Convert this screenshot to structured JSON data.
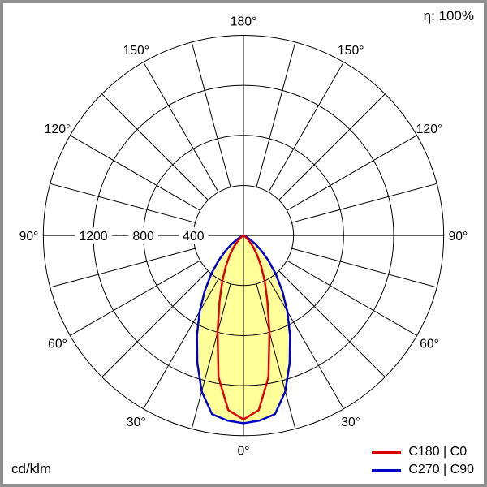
{
  "corner": {
    "efficiency": "η: 100%",
    "unit": "cd/klm"
  },
  "chart_data": {
    "type": "line",
    "polar": true,
    "description": "Polar luminous intensity distribution curve (photometric diagram), 0° at bottom (nadir)",
    "efficiency_percent": 100,
    "radial_axis": {
      "unit": "cd/klm",
      "ticks": [
        400,
        800,
        1200
      ],
      "max": 1600
    },
    "angular_axis": {
      "grid_step_deg": 15,
      "labels_deg": [
        0,
        30,
        60,
        90,
        120,
        150,
        180
      ],
      "zero_position": "bottom"
    },
    "fill": {
      "color": "#ffff99",
      "series": "C270 | C90"
    },
    "series": [
      {
        "name": "C180 | C0",
        "color": "#dd0000",
        "symmetric": true,
        "gamma_deg": [
          0,
          5,
          10,
          15,
          20,
          25,
          30,
          35,
          40,
          45,
          50,
          55,
          60,
          65,
          70,
          75,
          80,
          85,
          90
        ],
        "values": [
          1470,
          1400,
          1150,
          800,
          560,
          400,
          280,
          190,
          120,
          70,
          35,
          15,
          5,
          0,
          0,
          0,
          0,
          0,
          0
        ]
      },
      {
        "name": "C270 | C90",
        "color": "#0000cc",
        "symmetric": true,
        "gamma_deg": [
          0,
          5,
          10,
          15,
          20,
          25,
          30,
          35,
          40,
          45,
          50,
          55,
          60,
          65,
          70,
          75,
          80,
          85,
          90
        ],
        "values": [
          1500,
          1485,
          1450,
          1290,
          1080,
          880,
          700,
          540,
          400,
          280,
          185,
          110,
          55,
          20,
          5,
          0,
          0,
          0,
          0
        ]
      }
    ]
  }
}
